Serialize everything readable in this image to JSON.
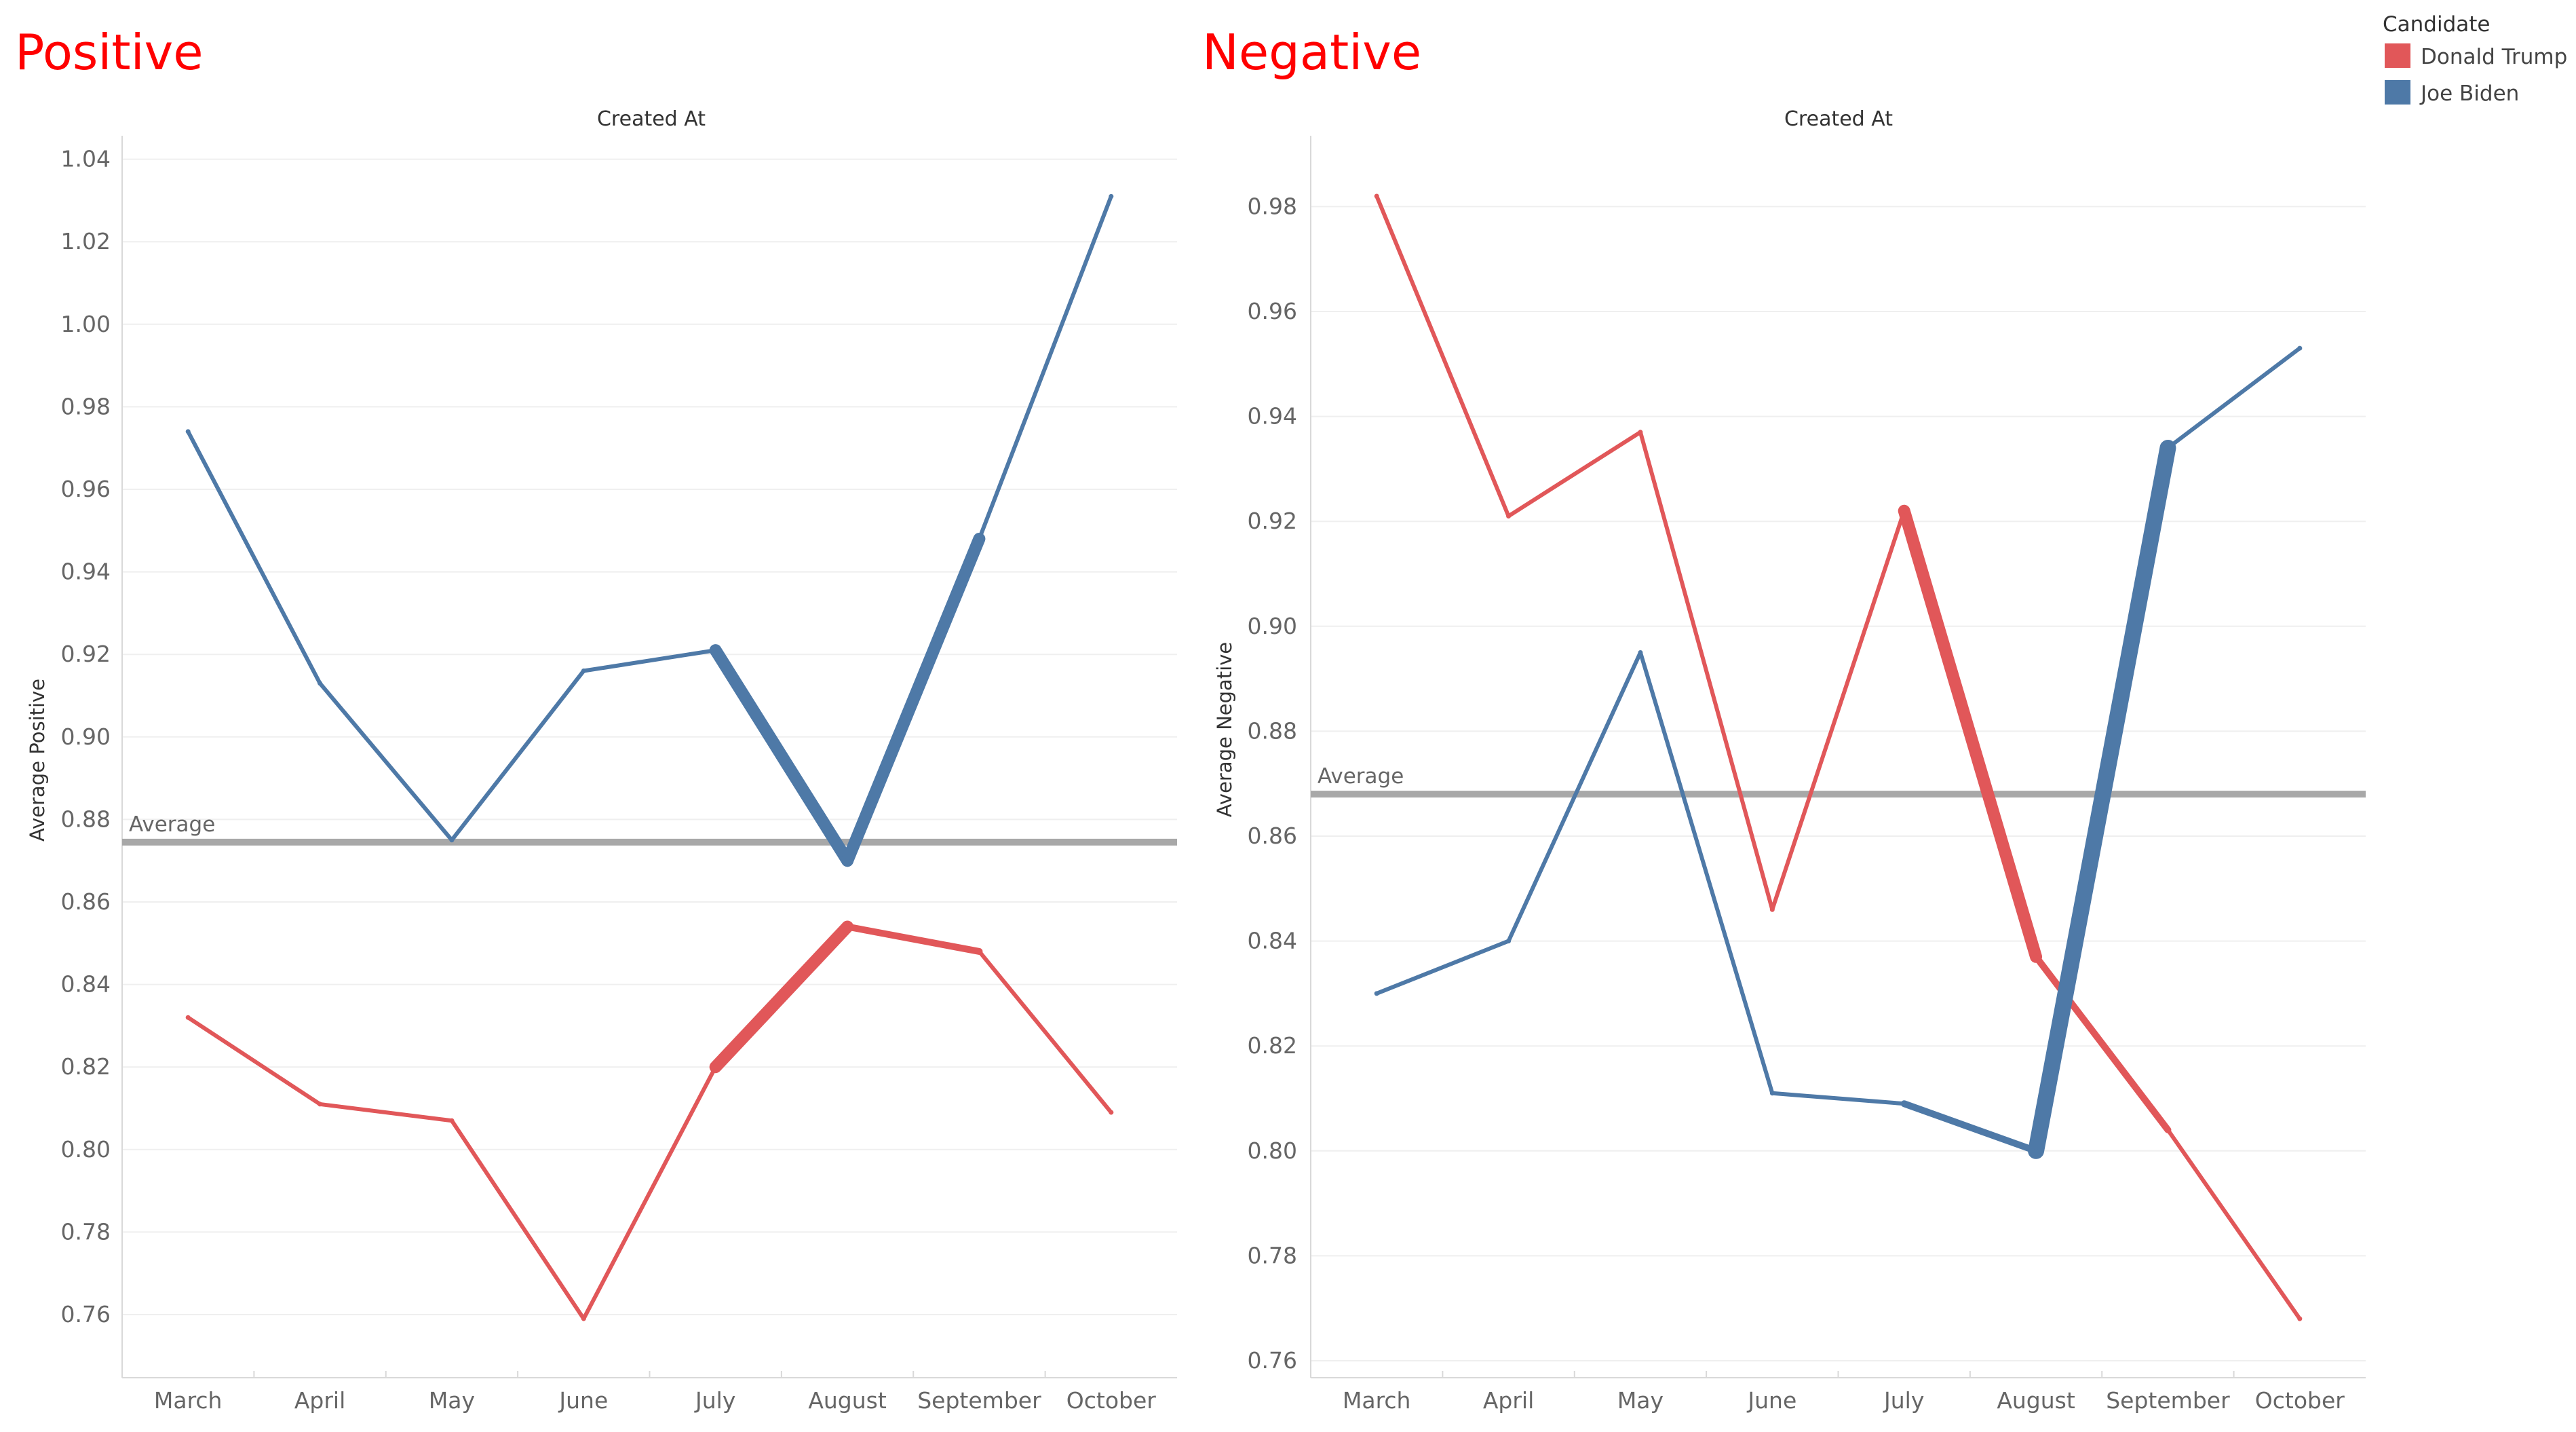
{
  "colors": {
    "trump": "#E15759",
    "biden": "#4E79A7",
    "average": "#A8A8A8",
    "title": "#FF0000"
  },
  "legend": {
    "title": "Candidate",
    "items": [
      {
        "label": "Donald Trump",
        "color": "#E15759"
      },
      {
        "label": "Joe Biden",
        "color": "#4E79A7"
      }
    ]
  },
  "chart_data": [
    {
      "type": "line",
      "title": "Positive",
      "column_header": "Created At",
      "ylabel": "Average Positive",
      "xlabel": "",
      "ylim": [
        0.748,
        1.045
      ],
      "yticks": [
        0.76,
        0.78,
        0.8,
        0.82,
        0.84,
        0.86,
        0.88,
        0.9,
        0.92,
        0.94,
        0.96,
        0.98,
        1.0,
        1.02,
        1.04
      ],
      "categories": [
        "March",
        "April",
        "May",
        "June",
        "July",
        "August",
        "September",
        "October"
      ],
      "series": [
        {
          "name": "Joe Biden",
          "values": [
            0.974,
            0.913,
            0.875,
            0.916,
            0.921,
            0.87,
            0.948,
            1.031
          ]
        },
        {
          "name": "Donald Trump",
          "values": [
            0.832,
            0.811,
            0.807,
            0.759,
            0.82,
            0.854,
            0.848,
            0.809
          ]
        }
      ],
      "reference_line": {
        "label": "Average",
        "value": 0.8745
      },
      "grid": true
    },
    {
      "type": "line",
      "title": "Negative",
      "column_header": "Created At",
      "ylabel": "Average Negative",
      "xlabel": "",
      "ylim": [
        0.755,
        0.994
      ],
      "yticks": [
        0.76,
        0.78,
        0.8,
        0.82,
        0.84,
        0.86,
        0.88,
        0.9,
        0.92,
        0.94,
        0.96,
        0.98
      ],
      "categories": [
        "March",
        "April",
        "May",
        "June",
        "July",
        "August",
        "September",
        "October"
      ],
      "series": [
        {
          "name": "Donald Trump",
          "values": [
            0.982,
            0.921,
            0.937,
            0.846,
            0.922,
            0.837,
            0.804,
            0.768
          ]
        },
        {
          "name": "Joe Biden",
          "values": [
            0.83,
            0.84,
            0.895,
            0.811,
            0.809,
            0.8,
            0.934,
            0.953
          ]
        }
      ],
      "reference_line": {
        "label": "Average",
        "value": 0.868
      },
      "grid": true
    }
  ]
}
